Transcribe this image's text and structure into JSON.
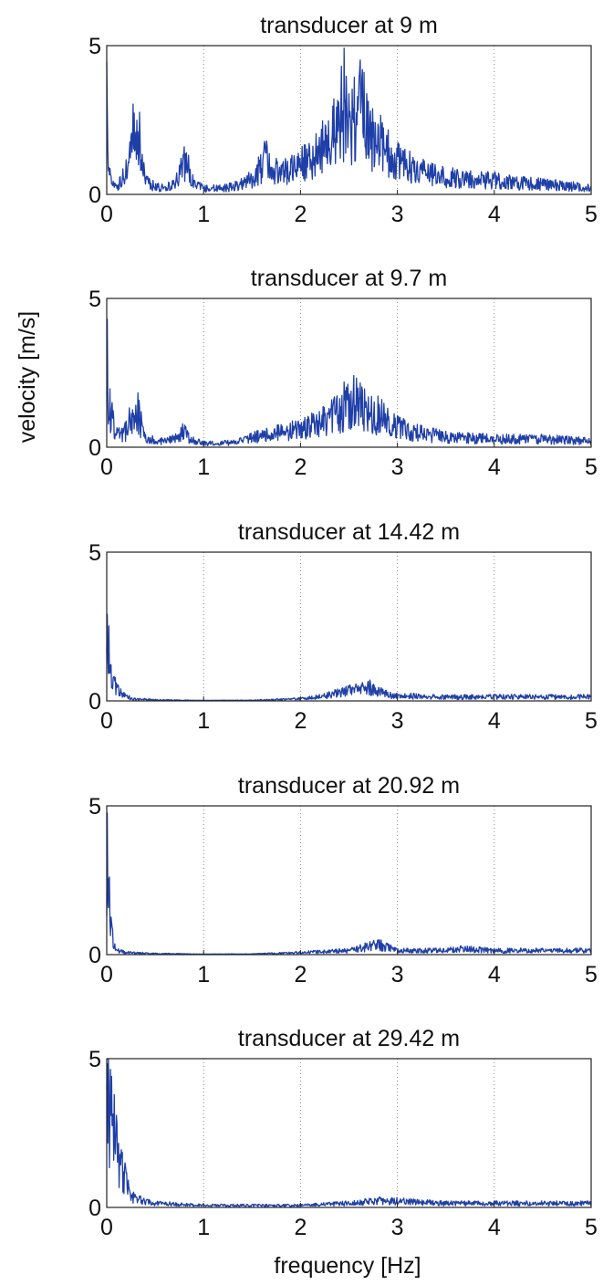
{
  "figure": {
    "ylabel": "velocity [m/s]",
    "xlabel": "frequency [Hz]"
  },
  "chart_data": [
    {
      "type": "line",
      "title": "transducer at 9 m",
      "xlim": [
        0,
        5
      ],
      "ylim": [
        0,
        5
      ],
      "xticks": [
        "0",
        "1",
        "2",
        "3",
        "4",
        "5"
      ],
      "yticks": [
        "0",
        "5"
      ],
      "grid": "vertical dotted",
      "color": "#1f3fa8",
      "series": [
        {
          "x": [
            0,
            0.02,
            0.05,
            0.1,
            0.15,
            0.2,
            0.25,
            0.28,
            0.3,
            0.33,
            0.36,
            0.4,
            0.5,
            0.6,
            0.7,
            0.75,
            0.8,
            0.85,
            0.9,
            1.0,
            1.2,
            1.4,
            1.5,
            1.6,
            1.65,
            1.7,
            1.8,
            2.0,
            2.1,
            2.2,
            2.3,
            2.4,
            2.45,
            2.5,
            2.55,
            2.6,
            2.65,
            2.7,
            2.8,
            2.9,
            3.0,
            3.2,
            3.4,
            3.6,
            3.8,
            4.0,
            4.2,
            4.5,
            4.8,
            5.0
          ],
          "y": [
            5.0,
            1.5,
            0.6,
            0.4,
            0.6,
            1.2,
            1.8,
            3.3,
            2.0,
            3.5,
            1.5,
            0.6,
            0.4,
            0.3,
            0.5,
            1.0,
            1.6,
            1.2,
            0.5,
            0.3,
            0.3,
            0.5,
            0.8,
            1.4,
            1.8,
            1.0,
            1.2,
            1.4,
            1.8,
            2.2,
            2.8,
            3.5,
            4.5,
            3.6,
            4.0,
            4.3,
            3.8,
            3.4,
            2.6,
            2.0,
            1.6,
            1.2,
            0.9,
            0.8,
            0.7,
            0.7,
            0.6,
            0.5,
            0.4,
            0.3
          ]
        }
      ]
    },
    {
      "type": "line",
      "title": "transducer at 9.7 m",
      "xlim": [
        0,
        5
      ],
      "ylim": [
        0,
        5
      ],
      "xticks": [
        "0",
        "1",
        "2",
        "3",
        "4",
        "5"
      ],
      "yticks": [
        "0",
        "5"
      ],
      "grid": "vertical dotted",
      "color": "#1f3fa8",
      "series": [
        {
          "x": [
            0,
            0.02,
            0.05,
            0.1,
            0.2,
            0.25,
            0.28,
            0.32,
            0.36,
            0.4,
            0.5,
            0.6,
            0.7,
            0.8,
            0.85,
            0.9,
            1.0,
            1.2,
            1.4,
            1.6,
            1.8,
            2.0,
            2.2,
            2.4,
            2.5,
            2.6,
            2.7,
            2.8,
            2.9,
            3.0,
            3.2,
            3.5,
            4.0,
            4.5,
            5.0
          ],
          "y": [
            5.0,
            2.5,
            1.6,
            0.6,
            0.8,
            1.9,
            1.2,
            1.8,
            1.0,
            0.5,
            0.3,
            0.3,
            0.4,
            0.8,
            0.5,
            0.3,
            0.2,
            0.2,
            0.3,
            0.6,
            0.7,
            0.9,
            1.2,
            1.8,
            2.3,
            2.1,
            1.9,
            1.6,
            1.3,
            1.0,
            0.7,
            0.5,
            0.4,
            0.4,
            0.3
          ]
        }
      ]
    },
    {
      "type": "line",
      "title": "transducer at 14.42 m",
      "xlim": [
        0,
        5
      ],
      "ylim": [
        0,
        5
      ],
      "xticks": [
        "0",
        "1",
        "2",
        "3",
        "4",
        "5"
      ],
      "yticks": [
        "0",
        "5"
      ],
      "grid": "vertical dotted",
      "color": "#1f3fa8",
      "series": [
        {
          "x": [
            0,
            0.02,
            0.05,
            0.08,
            0.1,
            0.15,
            0.2,
            0.3,
            0.5,
            1.0,
            1.5,
            2.0,
            2.2,
            2.4,
            2.5,
            2.6,
            2.7,
            2.8,
            2.9,
            3.0,
            3.5,
            4.0,
            4.5,
            5.0
          ],
          "y": [
            5.0,
            2.5,
            1.2,
            0.9,
            0.6,
            0.4,
            0.2,
            0.1,
            0.05,
            0.02,
            0.03,
            0.1,
            0.2,
            0.4,
            0.5,
            0.6,
            0.7,
            0.5,
            0.3,
            0.25,
            0.2,
            0.2,
            0.2,
            0.2
          ]
        }
      ]
    },
    {
      "type": "line",
      "title": "transducer at 20.92 m",
      "xlim": [
        0,
        5
      ],
      "ylim": [
        0,
        5
      ],
      "xticks": [
        "0",
        "1",
        "2",
        "3",
        "4",
        "5"
      ],
      "yticks": [
        "0",
        "5"
      ],
      "grid": "vertical dotted",
      "color": "#1f3fa8",
      "series": [
        {
          "x": [
            0,
            0.02,
            0.04,
            0.06,
            0.08,
            0.1,
            0.2,
            0.5,
            1.0,
            1.5,
            2.0,
            2.5,
            2.7,
            2.8,
            3.0,
            3.5,
            3.6,
            4.0,
            4.5,
            5.0
          ],
          "y": [
            5.0,
            3.0,
            1.5,
            0.8,
            0.4,
            0.2,
            0.1,
            0.05,
            0.02,
            0.03,
            0.1,
            0.2,
            0.4,
            0.5,
            0.2,
            0.2,
            0.3,
            0.2,
            0.2,
            0.2
          ]
        }
      ]
    },
    {
      "type": "line",
      "title": "transducer at 29.42 m",
      "xlim": [
        0,
        5
      ],
      "ylim": [
        0,
        5
      ],
      "xticks": [
        "0",
        "1",
        "2",
        "3",
        "4",
        "5"
      ],
      "yticks": [
        "0",
        "5"
      ],
      "grid": "vertical dotted",
      "color": "#1f3fa8",
      "series": [
        {
          "x": [
            0,
            0.02,
            0.05,
            0.08,
            0.1,
            0.12,
            0.15,
            0.2,
            0.25,
            0.3,
            0.4,
            0.5,
            1.0,
            1.5,
            2.0,
            2.5,
            2.7,
            2.8,
            3.0,
            3.5,
            4.0,
            4.5,
            5.0
          ],
          "y": [
            5.0,
            4.7,
            4.2,
            3.5,
            3.0,
            2.4,
            2.0,
            1.2,
            0.6,
            0.4,
            0.3,
            0.2,
            0.1,
            0.1,
            0.1,
            0.2,
            0.3,
            0.35,
            0.3,
            0.2,
            0.2,
            0.2,
            0.2
          ]
        }
      ]
    }
  ]
}
